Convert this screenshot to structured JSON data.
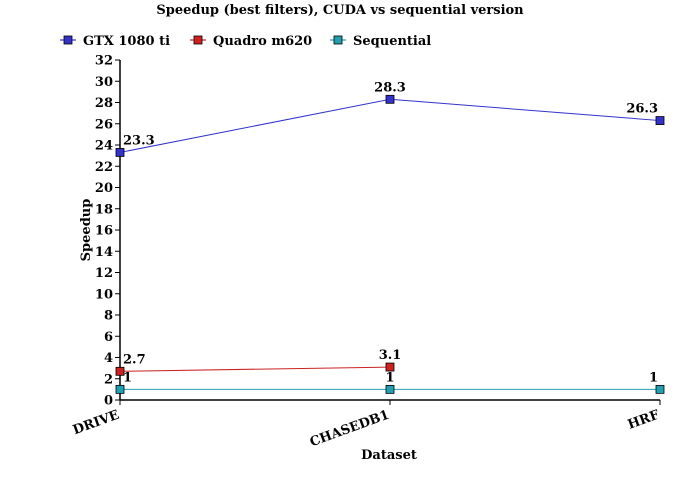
{
  "chart_data": {
    "type": "line",
    "title": "Speedup (best filters), CUDA vs sequential version",
    "xlabel": "Dataset",
    "ylabel": "Speedup",
    "categories": [
      "DRIVE",
      "CHASEDB1",
      "HRF"
    ],
    "ylim": [
      0,
      32
    ],
    "yticks": [
      0,
      2,
      4,
      6,
      8,
      10,
      12,
      14,
      16,
      18,
      20,
      22,
      24,
      26,
      28,
      30,
      32
    ],
    "grid": false,
    "legend_position": "top",
    "series": [
      {
        "name": "GTX 1080 ti",
        "values": [
          23.3,
          28.3,
          26.3
        ],
        "labels": [
          "23.3",
          "28.3",
          "26.3"
        ],
        "color": "#3333cc"
      },
      {
        "name": "Quadro m620",
        "values": [
          2.7,
          3.1,
          null
        ],
        "labels": [
          "2.7",
          "3.1",
          null
        ],
        "color": "#cc2222"
      },
      {
        "name": "Sequential",
        "values": [
          1,
          1,
          1
        ],
        "labels": [
          "1",
          "1",
          "1"
        ],
        "color": "#22a0b0"
      }
    ]
  }
}
